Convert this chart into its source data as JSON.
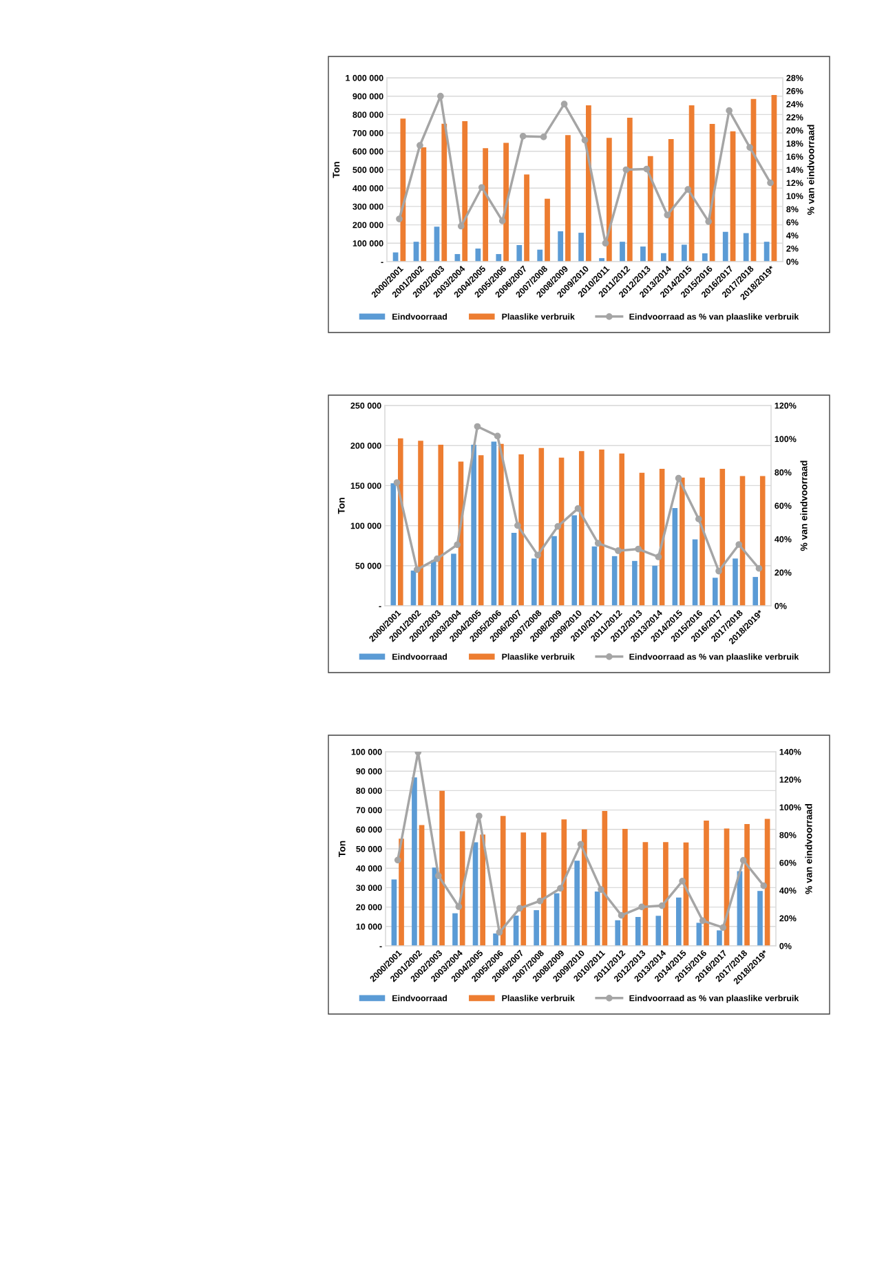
{
  "chart_data": [
    {
      "type": "bar",
      "categories": [
        "2000/2001",
        "2001/2002",
        "2002/2003",
        "2003/2004",
        "2004/2005",
        "2005/2006",
        "2006/2007",
        "2007/2008",
        "2008/2009",
        "2009/2010",
        "2010/2011",
        "2011/2012",
        "2012/2013",
        "2013/2014",
        "2014/2015",
        "2015/2016",
        "2016/2017",
        "2017/2018",
        "2018/2019*"
      ],
      "series": [
        {
          "name": "Eindvoorraad",
          "color": "#5b9bd5",
          "values": [
            50000,
            108000,
            190000,
            41000,
            71000,
            41000,
            90000,
            65000,
            165000,
            157000,
            19000,
            108000,
            82000,
            46000,
            92000,
            45000,
            162000,
            155000,
            108000
          ]
        },
        {
          "name": "Plaaslike verbruik",
          "color": "#ed7d31",
          "values": [
            778000,
            622000,
            750000,
            764000,
            617000,
            646000,
            474000,
            342000,
            688000,
            850000,
            673000,
            783000,
            574000,
            667000,
            850000,
            749000,
            709000,
            885000,
            906000
          ]
        },
        {
          "name": "Eindvoorraad as % van plaaslike verbruik",
          "type": "line",
          "axis": "y2",
          "marker": "circle",
          "color": "#a5a5a5",
          "values": [
            6.5,
            17.7,
            25.2,
            5.4,
            11.3,
            6.2,
            19.1,
            19.0,
            24.0,
            18.5,
            2.8,
            14.0,
            14.1,
            7.1,
            11.0,
            6.1,
            23.0,
            17.4,
            12.0
          ]
        }
      ],
      "ylabel": "Ton",
      "y2label": "% van eindvoorraad",
      "ylim": [
        0,
        1000000
      ],
      "yticks": [
        {
          "value": 0,
          "label": "-"
        },
        {
          "value": 100000,
          "label": "100 000"
        },
        {
          "value": 200000,
          "label": "200 000"
        },
        {
          "value": 300000,
          "label": "300 000"
        },
        {
          "value": 400000,
          "label": "400 000"
        },
        {
          "value": 500000,
          "label": "500 000"
        },
        {
          "value": 600000,
          "label": "600 000"
        },
        {
          "value": 700000,
          "label": "700 000"
        },
        {
          "value": 800000,
          "label": "800 000"
        },
        {
          "value": 900000,
          "label": "900 000"
        },
        {
          "value": 1000000,
          "label": "1 000 000"
        }
      ],
      "y2lim": [
        0,
        28
      ],
      "y2ticks": [
        {
          "value": 0,
          "label": "0%"
        },
        {
          "value": 2,
          "label": "2%"
        },
        {
          "value": 4,
          "label": "4%"
        },
        {
          "value": 6,
          "label": "6%"
        },
        {
          "value": 8,
          "label": "8%"
        },
        {
          "value": 10,
          "label": "10%"
        },
        {
          "value": 12,
          "label": "12%"
        },
        {
          "value": 14,
          "label": "14%"
        },
        {
          "value": 16,
          "label": "16%"
        },
        {
          "value": 18,
          "label": "18%"
        },
        {
          "value": 20,
          "label": "20%"
        },
        {
          "value": 22,
          "label": "22%"
        },
        {
          "value": 24,
          "label": "24%"
        },
        {
          "value": 26,
          "label": "26%"
        },
        {
          "value": 28,
          "label": "28%"
        }
      ],
      "grid": "y",
      "legend": "bottom"
    },
    {
      "type": "bar",
      "categories": [
        "2000/2001",
        "2001/2002",
        "2002/2003",
        "2003/2004",
        "2004/2005",
        "2005/2006",
        "2006/2007",
        "2007/2008",
        "2008/2009",
        "2009/2010",
        "2010/2011",
        "2011/2012",
        "2012/2013",
        "2013/2014",
        "2014/2015",
        "2015/2016",
        "2016/2017",
        "2017/2018",
        "2018/2019*"
      ],
      "series": [
        {
          "name": "Eindvoorraad",
          "color": "#5b9bd5",
          "values": [
            153000,
            44000,
            57000,
            65000,
            201000,
            205000,
            91000,
            59000,
            87000,
            113000,
            74000,
            62000,
            56000,
            50000,
            122000,
            83000,
            35000,
            59000,
            36000
          ]
        },
        {
          "name": "Plaaslike verbruik",
          "color": "#ed7d31",
          "values": [
            209000,
            206000,
            201000,
            180000,
            188000,
            202000,
            189000,
            197000,
            185000,
            193000,
            195000,
            190000,
            166000,
            171000,
            160000,
            160000,
            171000,
            162000,
            162000
          ]
        },
        {
          "name": "Eindvoorraad as % van plaaslike verbruik",
          "type": "line",
          "axis": "y2",
          "marker": "circle",
          "color": "#a5a5a5",
          "values": [
            73.8,
            21.7,
            28.2,
            36.6,
            107.4,
            101.7,
            48.1,
            30.4,
            47.6,
            58.3,
            37.5,
            33.0,
            34.0,
            29.3,
            76.4,
            52.0,
            20.8,
            36.7,
            22.4
          ]
        }
      ],
      "ylabel": "Ton",
      "y2label": "% van eindvoorraad",
      "ylim": [
        0,
        250000
      ],
      "yticks": [
        {
          "value": 0,
          "label": "-"
        },
        {
          "value": 50000,
          "label": "50 000"
        },
        {
          "value": 100000,
          "label": "100 000"
        },
        {
          "value": 150000,
          "label": "150 000"
        },
        {
          "value": 200000,
          "label": "200 000"
        },
        {
          "value": 250000,
          "label": "250 000"
        }
      ],
      "y2lim": [
        0,
        120
      ],
      "y2ticks": [
        {
          "value": 0,
          "label": "0%"
        },
        {
          "value": 20,
          "label": "20%"
        },
        {
          "value": 40,
          "label": "40%"
        },
        {
          "value": 60,
          "label": "60%"
        },
        {
          "value": 80,
          "label": "80%"
        },
        {
          "value": 100,
          "label": "100%"
        },
        {
          "value": 120,
          "label": "120%"
        }
      ],
      "grid": "y",
      "legend": "bottom"
    },
    {
      "type": "bar",
      "categories": [
        "2000/2001",
        "2001/2002",
        "2002/2003",
        "2003/2004",
        "2004/2005",
        "2005/2006",
        "2006/2007",
        "2007/2008",
        "2008/2009",
        "2009/2010",
        "2010/2011",
        "2011/2012",
        "2012/2013",
        "2013/2014",
        "2014/2015",
        "2015/2016",
        "2016/2017",
        "2017/2018",
        "2018/2019*"
      ],
      "series": [
        {
          "name": "Eindvoorraad",
          "color": "#5b9bd5",
          "values": [
            34200,
            86800,
            40300,
            16800,
            53400,
            6400,
            15600,
            18400,
            27100,
            43900,
            28000,
            13200,
            14900,
            15500,
            24900,
            11900,
            8000,
            38500,
            28300
          ]
        },
        {
          "name": "Plaaslike verbruik",
          "color": "#ed7d31",
          "values": [
            55200,
            62200,
            79900,
            59000,
            57400,
            66900,
            58400,
            58400,
            65200,
            60000,
            69500,
            60300,
            53500,
            53500,
            53300,
            64500,
            60500,
            62800,
            65400
          ]
        },
        {
          "name": "Eindvoorraad as % van plaaslike verbruik",
          "type": "line",
          "axis": "y2",
          "marker": "circle",
          "color": "#a5a5a5",
          "values": [
            61.9,
            139.7,
            50.6,
            28.3,
            93.7,
            9.8,
            27.1,
            32.4,
            41.5,
            73.3,
            40.7,
            22.0,
            28.1,
            29.0,
            46.7,
            18.2,
            13.2,
            61.7,
            43.4
          ]
        }
      ],
      "ylabel": "Ton",
      "y2label": "% van eindvoorraad",
      "ylim": [
        0,
        100000
      ],
      "yticks": [
        {
          "value": 0,
          "label": "-"
        },
        {
          "value": 10000,
          "label": "10 000"
        },
        {
          "value": 20000,
          "label": "20 000"
        },
        {
          "value": 30000,
          "label": "30 000"
        },
        {
          "value": 40000,
          "label": "40 000"
        },
        {
          "value": 50000,
          "label": "50 000"
        },
        {
          "value": 60000,
          "label": "60 000"
        },
        {
          "value": 70000,
          "label": "70 000"
        },
        {
          "value": 80000,
          "label": "80 000"
        },
        {
          "value": 90000,
          "label": "90 000"
        },
        {
          "value": 100000,
          "label": "100 000"
        }
      ],
      "y2lim": [
        0,
        140
      ],
      "y2ticks": [
        {
          "value": 0,
          "label": "0%"
        },
        {
          "value": 20,
          "label": "20%"
        },
        {
          "value": 40,
          "label": "40%"
        },
        {
          "value": 60,
          "label": "60%"
        },
        {
          "value": 80,
          "label": "80%"
        },
        {
          "value": 100,
          "label": "100%"
        },
        {
          "value": 120,
          "label": "120%"
        },
        {
          "value": 140,
          "label": "140%"
        }
      ],
      "grid": "y",
      "legend": "bottom"
    }
  ]
}
